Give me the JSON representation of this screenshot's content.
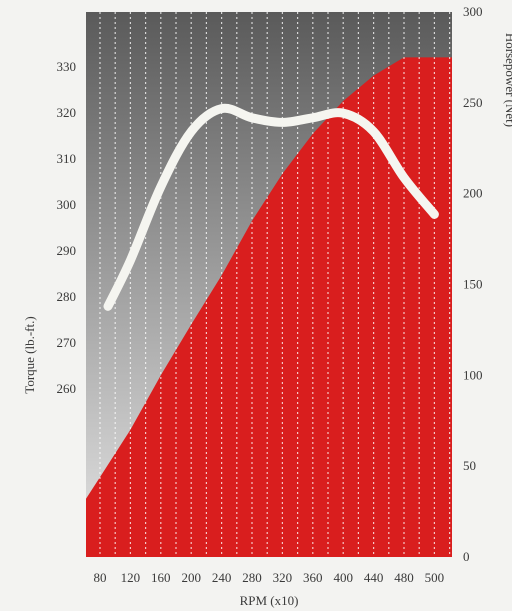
{
  "chart_data": {
    "type": "area",
    "title": "",
    "xlabel": "RPM (x10)",
    "ylabel_left": "Torque (lb.-ft.)",
    "ylabel_right": "Horsepower (Net)",
    "x_ticks": [
      "80",
      "120",
      "160",
      "200",
      "240",
      "280",
      "320",
      "360",
      "400",
      "440",
      "480",
      "500"
    ],
    "y_left_ticks": [
      260,
      270,
      280,
      290,
      300,
      310,
      320,
      330
    ],
    "y_right_ticks": [
      0,
      50,
      100,
      150,
      200,
      250,
      300
    ],
    "y_right_range": [
      0,
      300
    ],
    "y_left_range": [
      223.5,
      342
    ],
    "grid": "vertical dotted lines",
    "series": [
      {
        "name": "Horsepower (Net)",
        "axis": "right",
        "color": "#d91e1e",
        "x": [
          "80",
          "120",
          "160",
          "200",
          "240",
          "280",
          "320",
          "360",
          "400",
          "440",
          "480",
          "500"
        ],
        "values": [
          44,
          70,
          100,
          128,
          155,
          185,
          211,
          233,
          251,
          265,
          275,
          275
        ]
      },
      {
        "name": "Torque (lb.-ft.)",
        "axis": "left",
        "color": "#f5f5f0",
        "x": [
          "80",
          "120",
          "160",
          "200",
          "240",
          "280",
          "320",
          "360",
          "400",
          "440",
          "480",
          "500"
        ],
        "values": [
          278,
          288,
          304,
          316,
          321,
          319,
          318,
          319,
          320,
          316,
          306,
          298
        ]
      }
    ]
  },
  "colors": {
    "plot_top": "#5a5a5a",
    "plot_bottom": "#e6e6e6",
    "hp_fill": "#d91e1e",
    "torque_line": "#f5f5f0",
    "grid": "#ffffff"
  }
}
